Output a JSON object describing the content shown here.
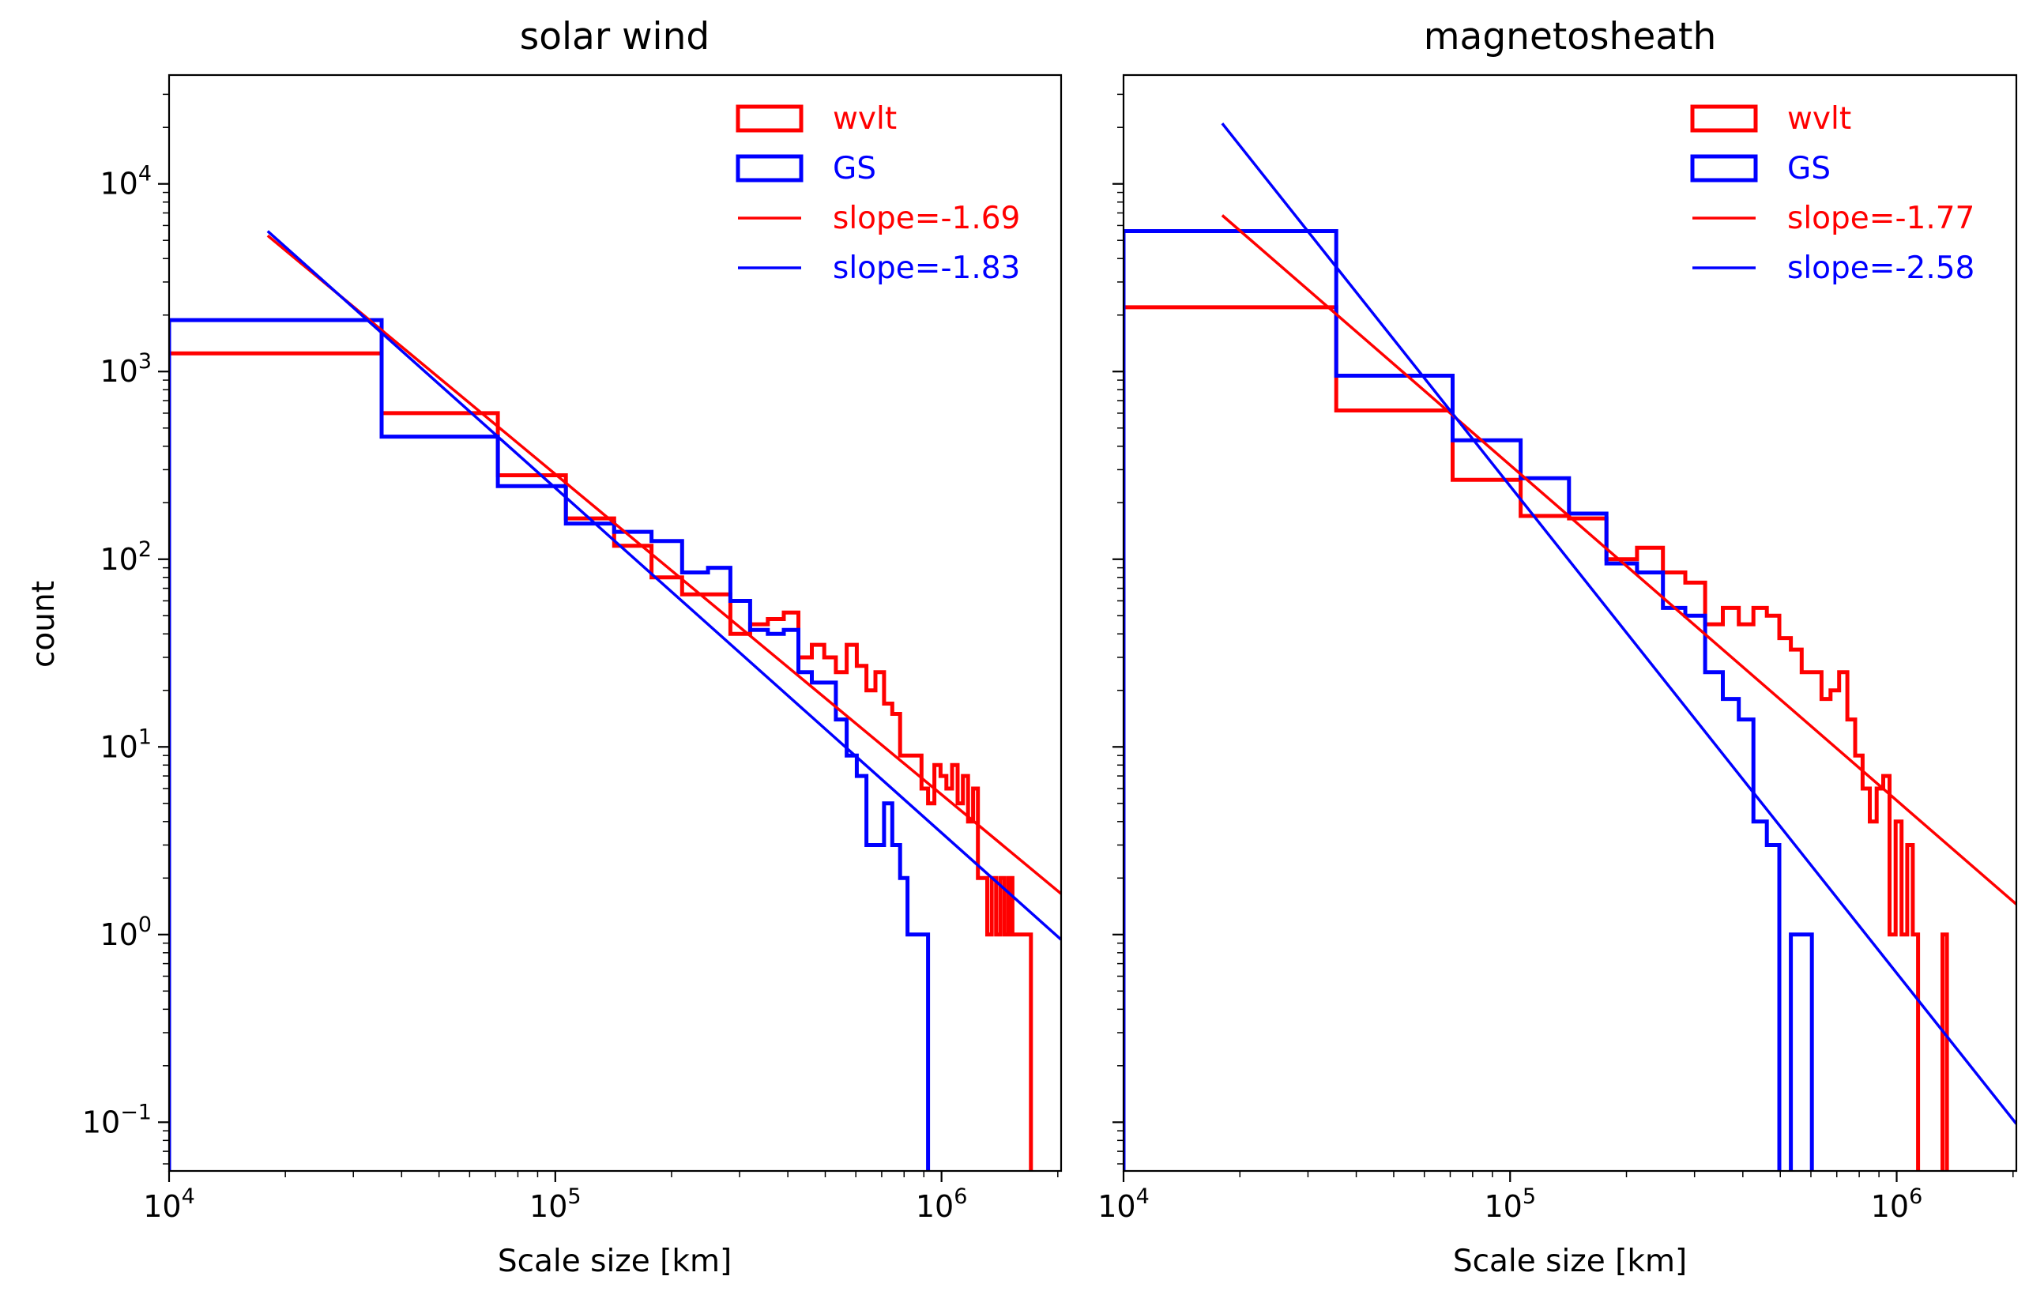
{
  "chart_data": [
    {
      "type": "histogram",
      "title": "solar wind",
      "xlabel": "Scale size [km]",
      "ylabel": "count",
      "x_scale": "log",
      "y_scale": "log",
      "xlim": [
        10000,
        2040000
      ],
      "ylim": [
        0.055,
        38000
      ],
      "x_ticks": [
        {
          "value": 10000,
          "base": "10",
          "exp": "4"
        },
        {
          "value": 100000,
          "base": "10",
          "exp": "5"
        },
        {
          "value": 1000000,
          "base": "10",
          "exp": "6"
        }
      ],
      "y_ticks": [
        {
          "value": 0.1,
          "base": "10",
          "exp": "−1"
        },
        {
          "value": 1,
          "base": "10",
          "exp": "0"
        },
        {
          "value": 10,
          "base": "10",
          "exp": "1"
        },
        {
          "value": 100,
          "base": "10",
          "exp": "2"
        },
        {
          "value": 1000,
          "base": "10",
          "exp": "3"
        },
        {
          "value": 10000,
          "base": "10",
          "exp": "4"
        }
      ],
      "legend_position": "top-right",
      "legend": [
        {
          "kind": "patch",
          "label": "wvlt",
          "color": "#ff0000"
        },
        {
          "kind": "patch",
          "label": "GS",
          "color": "#0000ff"
        },
        {
          "kind": "line",
          "label": "slope=-1.69",
          "color": "#ff0000"
        },
        {
          "kind": "line",
          "label": "slope=-1.83",
          "color": "#0000ff"
        }
      ],
      "series": [
        {
          "name": "wvlt",
          "style": "step",
          "color": "#ff0000",
          "bins": [
            [
              10000,
              35500,
              1250
            ],
            [
              35500,
              71000,
              600
            ],
            [
              71000,
              106500,
              280
            ],
            [
              106500,
              142000,
              165
            ],
            [
              142000,
              177500,
              118
            ],
            [
              177500,
              213000,
              80
            ],
            [
              213000,
              248500,
              65
            ],
            [
              248500,
              284000,
              65
            ],
            [
              284000,
              319500,
              40
            ],
            [
              319500,
              355000,
              45
            ],
            [
              355000,
              390500,
              48
            ],
            [
              390500,
              426000,
              52
            ],
            [
              426000,
              461500,
              30
            ],
            [
              461500,
              497000,
              35
            ],
            [
              497000,
              532500,
              30
            ],
            [
              532500,
              568000,
              25
            ],
            [
              568000,
              603500,
              35
            ],
            [
              603500,
              639000,
              27
            ],
            [
              639000,
              674500,
              20
            ],
            [
              674500,
              710000,
              25
            ],
            [
              710000,
              745500,
              17
            ],
            [
              745500,
              781000,
              15
            ],
            [
              781000,
              816500,
              9
            ],
            [
              816500,
              852000,
              9
            ],
            [
              852000,
              887500,
              9
            ],
            [
              887500,
              923000,
              6
            ],
            [
              923000,
              958500,
              5
            ],
            [
              958500,
              994000,
              8
            ],
            [
              994000,
              1029500,
              7
            ],
            [
              1029500,
              1065000,
              6
            ],
            [
              1065000,
              1100500,
              8
            ],
            [
              1100500,
              1136000,
              5
            ],
            [
              1136000,
              1171500,
              7
            ],
            [
              1171500,
              1207000,
              4
            ],
            [
              1207000,
              1242500,
              6
            ],
            [
              1242500,
              1278000,
              2
            ],
            [
              1278000,
              1313500,
              2
            ],
            [
              1313500,
              1349000,
              1
            ],
            [
              1349000,
              1384500,
              2
            ],
            [
              1384500,
              1420000,
              1
            ],
            [
              1420000,
              1455500,
              2
            ],
            [
              1455500,
              1491000,
              1
            ],
            [
              1491000,
              1526500,
              2
            ],
            [
              1526500,
              1562000,
              1
            ],
            [
              1562000,
              1597500,
              1
            ],
            [
              1597500,
              1633000,
              1
            ],
            [
              1633000,
              1668500,
              1
            ],
            [
              1668500,
              1704000,
              1
            ]
          ]
        },
        {
          "name": "GS",
          "style": "step",
          "color": "#0000ff",
          "bins": [
            [
              10000,
              35500,
              1880
            ],
            [
              35500,
              71000,
              450
            ],
            [
              71000,
              106500,
              245
            ],
            [
              106500,
              142000,
              155
            ],
            [
              142000,
              177500,
              140
            ],
            [
              177500,
              213000,
              125
            ],
            [
              213000,
              248500,
              85
            ],
            [
              248500,
              284000,
              90
            ],
            [
              284000,
              319500,
              60
            ],
            [
              319500,
              355000,
              42
            ],
            [
              355000,
              390500,
              40
            ],
            [
              390500,
              426000,
              42
            ],
            [
              426000,
              461500,
              25
            ],
            [
              461500,
              497000,
              22
            ],
            [
              497000,
              532500,
              22
            ],
            [
              532500,
              568000,
              14
            ],
            [
              568000,
              603500,
              9
            ],
            [
              603500,
              639000,
              7
            ],
            [
              639000,
              674500,
              3
            ],
            [
              674500,
              710000,
              3
            ],
            [
              710000,
              745500,
              5
            ],
            [
              745500,
              781000,
              3
            ],
            [
              781000,
              816500,
              2
            ],
            [
              816500,
              852000,
              1
            ],
            [
              852000,
              887500,
              1
            ],
            [
              887500,
              923000,
              1
            ]
          ]
        },
        {
          "name": "slope=-1.69",
          "style": "line",
          "color": "#ff0000",
          "x": [
            18000,
            2040000
          ],
          "y": [
            5300,
            1.65
          ]
        },
        {
          "name": "slope=-1.83",
          "style": "line",
          "color": "#0000ff",
          "x": [
            18000,
            2040000
          ],
          "y": [
            5600,
            0.94
          ]
        }
      ]
    },
    {
      "type": "histogram",
      "title": "magnetosheath",
      "xlabel": "Scale size [km]",
      "x_scale": "log",
      "y_scale": "log",
      "xlim": [
        10000,
        2040000
      ],
      "ylim": [
        0.055,
        38000
      ],
      "x_ticks": [
        {
          "value": 10000,
          "base": "10",
          "exp": "4"
        },
        {
          "value": 100000,
          "base": "10",
          "exp": "5"
        },
        {
          "value": 1000000,
          "base": "10",
          "exp": "6"
        }
      ],
      "y_ticks": [
        {
          "value": 0.1
        },
        {
          "value": 1
        },
        {
          "value": 10
        },
        {
          "value": 100
        },
        {
          "value": 1000
        },
        {
          "value": 10000
        }
      ],
      "legend_position": "top-right",
      "legend": [
        {
          "kind": "patch",
          "label": "wvlt",
          "color": "#ff0000"
        },
        {
          "kind": "patch",
          "label": "GS",
          "color": "#0000ff"
        },
        {
          "kind": "line",
          "label": "slope=-1.77",
          "color": "#ff0000"
        },
        {
          "kind": "line",
          "label": "slope=-2.58",
          "color": "#0000ff"
        }
      ],
      "series": [
        {
          "name": "wvlt",
          "style": "step",
          "color": "#ff0000",
          "bins": [
            [
              10000,
              35500,
              2200
            ],
            [
              35500,
              71000,
              620
            ],
            [
              71000,
              106500,
              265
            ],
            [
              106500,
              142000,
              170
            ],
            [
              142000,
              177500,
              165
            ],
            [
              177500,
              213000,
              100
            ],
            [
              213000,
              248500,
              115
            ],
            [
              248500,
              284000,
              85
            ],
            [
              284000,
              319500,
              75
            ],
            [
              319500,
              355000,
              45
            ],
            [
              355000,
              390500,
              55
            ],
            [
              390500,
              426000,
              45
            ],
            [
              426000,
              461500,
              55
            ],
            [
              461500,
              497000,
              50
            ],
            [
              497000,
              532500,
              38
            ],
            [
              532500,
              568000,
              33
            ],
            [
              568000,
              603500,
              25
            ],
            [
              603500,
              639000,
              25
            ],
            [
              639000,
              674500,
              18
            ],
            [
              674500,
              710000,
              20
            ],
            [
              710000,
              745500,
              25
            ],
            [
              745500,
              781000,
              14
            ],
            [
              781000,
              816500,
              9
            ],
            [
              816500,
              852000,
              6
            ],
            [
              852000,
              887500,
              4
            ],
            [
              887500,
              923000,
              6
            ],
            [
              923000,
              958500,
              7
            ],
            [
              958500,
              994000,
              1
            ],
            [
              994000,
              1029500,
              4
            ],
            [
              1029500,
              1065000,
              1
            ],
            [
              1065000,
              1100500,
              3
            ],
            [
              1100500,
              1136000,
              1
            ],
            [
              1136000,
              1171500,
              0
            ],
            [
              1171500,
              1207000,
              0
            ],
            [
              1207000,
              1242500,
              0
            ],
            [
              1242500,
              1278000,
              0
            ],
            [
              1278000,
              1313500,
              0
            ],
            [
              1313500,
              1349000,
              1
            ]
          ]
        },
        {
          "name": "GS",
          "style": "step",
          "color": "#0000ff",
          "bins": [
            [
              10000,
              35500,
              5600
            ],
            [
              35500,
              71000,
              950
            ],
            [
              71000,
              106500,
              430
            ],
            [
              106500,
              142000,
              270
            ],
            [
              142000,
              177500,
              175
            ],
            [
              177500,
              213000,
              95
            ],
            [
              213000,
              248500,
              85
            ],
            [
              248500,
              284000,
              55
            ],
            [
              284000,
              319500,
              50
            ],
            [
              319500,
              355000,
              25
            ],
            [
              355000,
              390500,
              18
            ],
            [
              390500,
              426000,
              14
            ],
            [
              426000,
              461500,
              4
            ],
            [
              461500,
              497000,
              3
            ],
            [
              497000,
              532500,
              0
            ],
            [
              532500,
              568000,
              1
            ],
            [
              568000,
              603500,
              1
            ]
          ]
        },
        {
          "name": "slope=-1.77",
          "style": "line",
          "color": "#ff0000",
          "x": [
            18000,
            2040000
          ],
          "y": [
            6800,
            1.45
          ]
        },
        {
          "name": "slope=-2.58",
          "style": "line",
          "color": "#0000ff",
          "x": [
            18000,
            2040000
          ],
          "y": [
            21000,
            0.098
          ]
        }
      ]
    }
  ]
}
